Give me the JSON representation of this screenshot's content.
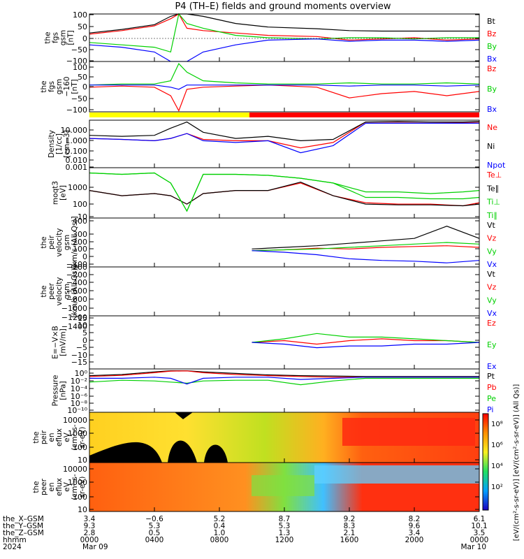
{
  "title": "P4 (TH–E) fields and ground moments overview",
  "colors": {
    "black": "#000000",
    "red": "#ff0000",
    "green": "#00d000",
    "blue": "#0000ff",
    "yellow": "#ffff00"
  },
  "chart_data": [
    {
      "type": "line",
      "id": "fgs",
      "ylabel": [
        "the",
        "fgs",
        "gsm",
        "[nT]"
      ],
      "yticks": [
        "100",
        "50",
        "0",
        "−50",
        "−100"
      ],
      "ylim": [
        -100,
        100
      ],
      "series": [
        {
          "name": "Bt",
          "color": "black",
          "x": [
            0,
            2,
            4,
            5,
            5.5,
            6,
            7,
            9,
            11,
            14,
            16,
            18,
            20,
            22,
            24
          ],
          "y": [
            20,
            35,
            55,
            90,
            100,
            100,
            90,
            60,
            45,
            38,
            30,
            28,
            28,
            28,
            28
          ]
        },
        {
          "name": "Bz",
          "color": "red",
          "x": [
            0,
            2,
            4,
            5,
            5.5,
            6,
            7,
            9,
            11,
            14,
            16,
            18,
            20,
            22,
            24
          ],
          "y": [
            15,
            30,
            50,
            80,
            100,
            40,
            30,
            20,
            10,
            5,
            -10,
            -5,
            0,
            -10,
            -5
          ]
        },
        {
          "name": "By",
          "color": "green",
          "x": [
            0,
            2,
            4,
            5,
            5.5,
            6,
            7,
            9,
            11,
            14,
            16,
            18,
            20,
            22,
            24
          ],
          "y": [
            -20,
            -30,
            -40,
            -60,
            100,
            60,
            40,
            10,
            0,
            -5,
            0,
            0,
            -5,
            0,
            0
          ]
        },
        {
          "name": "Bx",
          "color": "blue",
          "x": [
            0,
            2,
            4,
            5,
            5.5,
            6,
            7,
            9,
            11,
            14,
            16,
            18,
            20,
            22,
            24
          ],
          "y": [
            -30,
            -40,
            -60,
            -100,
            -100,
            -100,
            -60,
            -30,
            -10,
            -5,
            -15,
            -10,
            -10,
            -15,
            -10
          ]
        }
      ]
    },
    {
      "type": "line",
      "id": "fgs_zoom",
      "ylabel": [
        "the",
        "fgs",
        "gsm",
        "−160",
        "[nT]"
      ],
      "yticks": [
        "100",
        "50",
        "0",
        "−50",
        "−100"
      ],
      "ylim": [
        -125,
        110
      ],
      "series": [
        {
          "name": "Bz",
          "color": "red",
          "x": [
            0,
            2,
            4,
            5,
            5.5,
            6,
            7,
            9,
            11,
            14,
            16,
            18,
            20,
            22,
            24
          ],
          "y": [
            -10,
            -5,
            -10,
            -50,
            -120,
            -20,
            -10,
            -5,
            0,
            -10,
            -60,
            -40,
            -30,
            -50,
            -30
          ]
        },
        {
          "name": "By",
          "color": "green",
          "x": [
            0,
            2,
            4,
            5,
            5.5,
            6,
            7,
            9,
            11,
            14,
            16,
            18,
            20,
            22,
            24
          ],
          "y": [
            0,
            5,
            5,
            20,
            100,
            60,
            20,
            10,
            5,
            5,
            10,
            5,
            5,
            10,
            5
          ]
        },
        {
          "name": "Bx",
          "color": "blue",
          "x": [
            0,
            2,
            4,
            5,
            5.5,
            6,
            7,
            9,
            11,
            14,
            16,
            18,
            20,
            22,
            24
          ],
          "y": [
            0,
            0,
            0,
            -10,
            -20,
            0,
            0,
            0,
            0,
            0,
            -5,
            0,
            0,
            -5,
            0
          ]
        }
      ]
    },
    {
      "type": "line",
      "id": "density",
      "ylabel": [
        "Density",
        "[1/cc]",
        "[cm−3]"
      ],
      "yticks": [
        "10.000",
        "1.000",
        "0.100",
        "0.010",
        "0.001"
      ],
      "ylim": [
        0.0007,
        30
      ],
      "log": true,
      "series": [
        {
          "name": "Ne",
          "color": "red",
          "x": [
            0,
            2,
            4,
            5,
            6,
            7,
            9,
            11,
            13,
            15,
            17,
            19,
            21,
            23,
            24
          ],
          "y": [
            0.5,
            0.4,
            0.3,
            0.5,
            1.5,
            0.4,
            0.3,
            0.3,
            0.06,
            0.2,
            20,
            20,
            20,
            18,
            20
          ]
        },
        {
          "name": "Ni",
          "color": "black",
          "x": [
            0,
            2,
            4,
            5,
            6,
            7,
            9,
            11,
            13,
            15,
            17,
            19,
            21,
            23,
            24
          ],
          "y": [
            1,
            0.8,
            1,
            5,
            20,
            2,
            0.5,
            0.8,
            0.3,
            0.4,
            20,
            22,
            20,
            20,
            22
          ]
        },
        {
          "name": "Npot",
          "color": "blue",
          "x": [
            0,
            2,
            4,
            5,
            6,
            7,
            9,
            11,
            13,
            15,
            17,
            19,
            21,
            23,
            24
          ],
          "y": [
            0.5,
            0.4,
            0.3,
            0.5,
            1.5,
            0.3,
            0.2,
            0.3,
            0.02,
            0.1,
            15,
            15,
            15,
            15,
            15
          ]
        }
      ]
    },
    {
      "type": "line",
      "id": "temperature",
      "ylabel": [
        "moqt3",
        "[eV]"
      ],
      "yticks": [
        "1000",
        "100",
        "10"
      ],
      "ylim": [
        8,
        6000
      ],
      "log": true,
      "series": [
        {
          "name": "Te⊥",
          "color": "red",
          "x": [
            0,
            2,
            4,
            5,
            6,
            7,
            9,
            11,
            13,
            15,
            17,
            19,
            21,
            23,
            24
          ],
          "y": [
            300,
            150,
            200,
            150,
            50,
            200,
            300,
            300,
            800,
            150,
            60,
            50,
            50,
            40,
            60
          ]
        },
        {
          "name": "Te∥",
          "color": "black",
          "x": [
            0,
            2,
            4,
            5,
            6,
            7,
            9,
            11,
            13,
            15,
            17,
            19,
            21,
            23,
            24
          ],
          "y": [
            300,
            150,
            200,
            150,
            50,
            200,
            300,
            300,
            900,
            150,
            50,
            45,
            45,
            40,
            50
          ]
        },
        {
          "name": "Ti⊥",
          "color": "green",
          "x": [
            0,
            2,
            4,
            5,
            6,
            7,
            9,
            11,
            13,
            15,
            17,
            19,
            21,
            23,
            24
          ],
          "y": [
            3000,
            2500,
            3000,
            800,
            20,
            2500,
            2500,
            2200,
            1500,
            800,
            250,
            250,
            200,
            250,
            300
          ]
        },
        {
          "name": "Ti∥",
          "color": "green",
          "x": [
            0,
            2,
            4,
            5,
            6,
            7,
            9,
            11,
            13,
            15,
            17,
            19,
            21,
            23,
            24
          ],
          "y": [
            3000,
            2500,
            3000,
            800,
            20,
            2500,
            2500,
            2200,
            1500,
            800,
            120,
            120,
            100,
            100,
            120
          ]
        }
      ]
    },
    {
      "type": "line",
      "id": "peir_velocity",
      "ylabel": [
        "the",
        "peir",
        "velocity",
        "gsm",
        "[km/s (All Qs)]"
      ],
      "yticks": [
        "400",
        "300",
        "200",
        "100",
        "0",
        "−100",
        "−200"
      ],
      "ylim": [
        -200,
        400
      ],
      "series": [
        {
          "name": "Vt",
          "color": "black",
          "x": [
            10,
            12,
            14,
            16,
            18,
            20,
            22,
            24
          ],
          "y": [
            20,
            40,
            60,
            90,
            120,
            150,
            300,
            150
          ]
        },
        {
          "name": "Vz",
          "color": "red",
          "x": [
            10,
            12,
            14,
            16,
            18,
            20,
            22,
            24
          ],
          "y": [
            0,
            10,
            30,
            20,
            40,
            50,
            60,
            40
          ]
        },
        {
          "name": "Vy",
          "color": "green",
          "x": [
            10,
            12,
            14,
            16,
            18,
            20,
            22,
            24
          ],
          "y": [
            0,
            10,
            20,
            40,
            60,
            80,
            100,
            80
          ]
        },
        {
          "name": "Vx",
          "color": "blue",
          "x": [
            10,
            12,
            14,
            16,
            18,
            20,
            22,
            24
          ],
          "y": [
            0,
            -20,
            -50,
            -100,
            -120,
            -130,
            -150,
            -120
          ]
        }
      ]
    },
    {
      "type": "line",
      "id": "peer_velocity",
      "ylabel": [
        "the",
        "peer",
        "velocity",
        "gsm",
        "[km/s (All Qs)]"
      ],
      "yticks": [
        "−200",
        "−400",
        "−600",
        "−800",
        "−1000",
        "−1200",
        "−1400"
      ],
      "ylim": [
        -1500,
        -120
      ],
      "series": [
        {
          "name": "Vt",
          "color": "black"
        },
        {
          "name": "Vz",
          "color": "red"
        },
        {
          "name": "Vy",
          "color": "green"
        },
        {
          "name": "Vx",
          "color": "blue"
        }
      ]
    },
    {
      "type": "line",
      "id": "efield",
      "ylabel": [
        "E=−V×B",
        "[mV/m]"
      ],
      "yticks": [
        "15",
        "10",
        "5",
        "0",
        "−5",
        "−10",
        "−15"
      ],
      "ylim": [
        -15,
        15
      ],
      "series": [
        {
          "name": "Ez",
          "color": "red",
          "x": [
            10,
            12,
            14,
            16,
            18,
            20,
            22,
            24
          ],
          "y": [
            0,
            1,
            -1,
            1,
            2,
            1,
            1,
            0
          ]
        },
        {
          "name": "Ey",
          "color": "green",
          "x": [
            10,
            12,
            14,
            16,
            18,
            20,
            22,
            24
          ],
          "y": [
            0,
            2,
            5,
            3,
            3,
            2,
            1,
            0
          ]
        },
        {
          "name": "Ex",
          "color": "blue",
          "x": [
            10,
            12,
            14,
            16,
            18,
            20,
            22,
            24
          ],
          "y": [
            0,
            -1,
            -3,
            -2,
            -2,
            -1,
            -1,
            0
          ]
        }
      ]
    },
    {
      "type": "line",
      "id": "pressure",
      "ylabel": [
        "Pressure",
        "[nPa]"
      ],
      "yticks": [
        "10⁰",
        "10⁻²",
        "10⁻⁴",
        "10⁻⁶",
        "10⁻⁸",
        "10⁻¹⁰"
      ],
      "ylim": [
        1e-11,
        3
      ],
      "log": true,
      "series": [
        {
          "name": "Pt",
          "color": "black",
          "x": [
            0,
            2,
            4,
            5,
            6,
            7,
            9,
            11,
            13,
            15,
            17,
            19,
            21,
            23,
            24
          ],
          "y": [
            0.05,
            0.1,
            0.5,
            1,
            1,
            0.5,
            0.2,
            0.08,
            0.05,
            0.04,
            0.03,
            0.03,
            0.03,
            0.03,
            0.03
          ]
        },
        {
          "name": "Pb",
          "color": "red",
          "x": [
            0,
            2,
            4,
            5,
            6,
            7,
            9,
            11,
            13,
            15,
            17,
            19,
            21,
            23,
            24
          ],
          "y": [
            0.03,
            0.06,
            0.3,
            0.8,
            0.9,
            0.3,
            0.1,
            0.05,
            0.03,
            0.02,
            0.02,
            0.02,
            0.02,
            0.02,
            0.02
          ]
        },
        {
          "name": "Pe",
          "color": "green",
          "x": [
            0,
            2,
            4,
            5,
            6,
            7,
            9,
            11,
            13,
            15,
            17,
            19,
            21,
            23,
            24
          ],
          "y": [
            0.001,
            0.003,
            0.002,
            0.001,
            0.0005,
            0.002,
            0.003,
            0.003,
            0.0002,
            0.002,
            0.01,
            0.01,
            0.01,
            0.01,
            0.01
          ]
        },
        {
          "name": "Pi",
          "color": "blue",
          "x": [
            0,
            2,
            4,
            5,
            6,
            7,
            9,
            11,
            13,
            15,
            17,
            19,
            21,
            23,
            24
          ],
          "y": [
            0.01,
            0.01,
            0.02,
            0.01,
            0.0003,
            0.01,
            0.02,
            0.02,
            0.005,
            0.01,
            0.02,
            0.02,
            0.02,
            0.02,
            0.02
          ]
        }
      ]
    },
    {
      "type": "heatmap",
      "id": "peir_spec",
      "ylabel": [
        "the",
        "peir",
        "en",
        "eflux",
        "eV",
        "(cm²-s-",
        "sr-eV)"
      ],
      "yticks": [
        "10000",
        "1000",
        "100",
        "10"
      ],
      "ylim": [
        5,
        25000
      ],
      "log": true
    },
    {
      "type": "heatmap",
      "id": "peer_spec",
      "ylabel": [
        "the",
        "peer",
        "en",
        "eflux",
        "eV",
        "(cm²-s-",
        "sr-eV)"
      ],
      "yticks": [
        "10000",
        "1000",
        "100",
        "10"
      ],
      "ylim": [
        5,
        25000
      ],
      "log": true
    }
  ],
  "colorbar": {
    "ticks": [
      "10⁸",
      "10⁶",
      "10⁴",
      "10²"
    ],
    "label": "[eV/(cm²-s-sr-eV)] [eV/(cm²-s-sr-eV)] (All Qs)]"
  },
  "xaxis": {
    "ticks": [
      "0000",
      "0400",
      "0800",
      "1200",
      "1600",
      "2000",
      "0000"
    ],
    "xlim": [
      0,
      24
    ],
    "rows": [
      {
        "label": "the_X–GSM",
        "values": [
          "3.4",
          "−0.6",
          "5.2",
          "8.7",
          "9.2",
          "8.2",
          "6.1"
        ]
      },
      {
        "label": "the_Y–GSM",
        "values": [
          "9.3",
          "5.3",
          "0.4",
          "5.3",
          "8.3",
          "9.6",
          "10.1"
        ]
      },
      {
        "label": "the_Z–GSM",
        "values": [
          "2.8",
          "0.5",
          "1.0",
          "1.3",
          "2.1",
          "3.4",
          "3.5"
        ]
      },
      {
        "label": "hhmm",
        "values": [
          "0000",
          "0400",
          "0800",
          "1200",
          "1600",
          "2000",
          "0000"
        ]
      },
      {
        "label": "2024",
        "values": [
          "Mar 09",
          "",
          "",
          "",
          "",
          "",
          "Mar 10"
        ]
      }
    ]
  }
}
